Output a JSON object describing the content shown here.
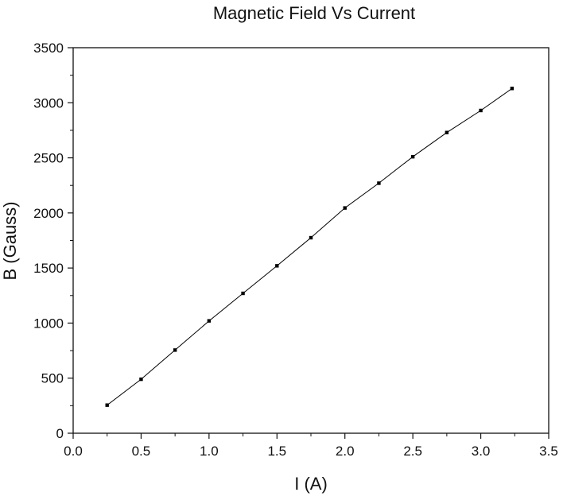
{
  "chart_data": {
    "type": "line",
    "title": "Magnetic Field Vs Current",
    "xlabel": "I (A)",
    "ylabel": "B (Gauss)",
    "xlim": [
      0.0,
      3.5
    ],
    "ylim": [
      0,
      3500
    ],
    "x_ticks": [
      "0.0",
      "0.5",
      "1.0",
      "1.5",
      "2.0",
      "2.5",
      "3.0",
      "3.5"
    ],
    "y_ticks": [
      "0",
      "500",
      "1000",
      "1500",
      "2000",
      "2500",
      "3000",
      "3500"
    ],
    "grid": false,
    "legend": "none",
    "series": [
      {
        "x": [
          0.25,
          0.5,
          0.75,
          1.0,
          1.25,
          1.5,
          1.75,
          2.0,
          2.25,
          2.5,
          2.75,
          3.0,
          3.23
        ],
        "y": [
          255,
          490,
          755,
          1020,
          1270,
          1520,
          1775,
          2045,
          2270,
          2510,
          2730,
          2930,
          3130
        ],
        "color": "#000000",
        "marker": "square"
      }
    ]
  }
}
